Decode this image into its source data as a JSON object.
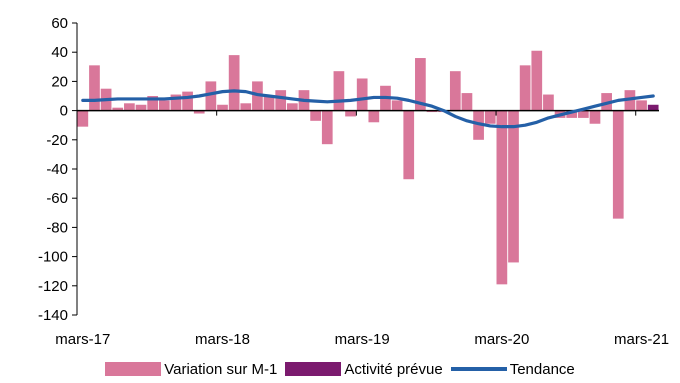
{
  "chart_data": {
    "type": "bar",
    "title": "",
    "xlabel": "",
    "ylabel": "",
    "ylim": [
      -140,
      60
    ],
    "yticks": [
      -140,
      -120,
      -100,
      -80,
      -60,
      -40,
      -20,
      0,
      20,
      40,
      60
    ],
    "x_tick_labels": [
      {
        "index": 0,
        "label": "mars-17"
      },
      {
        "index": 12,
        "label": "mars-18"
      },
      {
        "index": 24,
        "label": "mars-19"
      },
      {
        "index": 36,
        "label": "mars-20"
      },
      {
        "index": 48,
        "label": "mars-21"
      }
    ],
    "num_periods": 50,
    "grid": false,
    "legend_position": "bottom",
    "series": [
      {
        "name": "Variation sur M-1",
        "kind": "bar",
        "color": "#d9779a",
        "values": [
          -11,
          31,
          15,
          2,
          5,
          4,
          10,
          7,
          11,
          13,
          -2,
          20,
          4,
          38,
          5,
          20,
          10,
          14,
          5,
          14,
          -7,
          -23,
          27,
          -4,
          22,
          -8,
          17,
          7,
          -47,
          36,
          -1,
          -1,
          27,
          12,
          -20,
          -9,
          -119,
          -104,
          31,
          41,
          11,
          -5,
          -5,
          -5,
          -9,
          12,
          -74,
          14,
          7,
          0
        ]
      },
      {
        "name": "Activité prévue",
        "kind": "bar",
        "color": "#7b1a6e",
        "values": [
          null,
          null,
          null,
          null,
          null,
          null,
          null,
          null,
          null,
          null,
          null,
          null,
          null,
          null,
          null,
          null,
          null,
          null,
          null,
          null,
          null,
          null,
          null,
          null,
          null,
          null,
          null,
          null,
          null,
          null,
          null,
          null,
          null,
          null,
          null,
          null,
          null,
          null,
          null,
          null,
          null,
          null,
          null,
          null,
          null,
          null,
          null,
          null,
          null,
          4
        ]
      },
      {
        "name": "Tendance",
        "kind": "line",
        "color": "#2460a7",
        "values": [
          7,
          7,
          7.5,
          8,
          8,
          8,
          8,
          8,
          8.5,
          9,
          10,
          11.5,
          13,
          13.5,
          13,
          11,
          10,
          9,
          8,
          7,
          6.5,
          6,
          6.5,
          7,
          8,
          9,
          9,
          8.5,
          7,
          5,
          3,
          0,
          -4,
          -7,
          -9,
          -10.5,
          -11,
          -11,
          -10,
          -8,
          -5,
          -3,
          -1,
          1,
          3,
          5,
          7,
          8,
          9,
          10
        ]
      }
    ]
  }
}
